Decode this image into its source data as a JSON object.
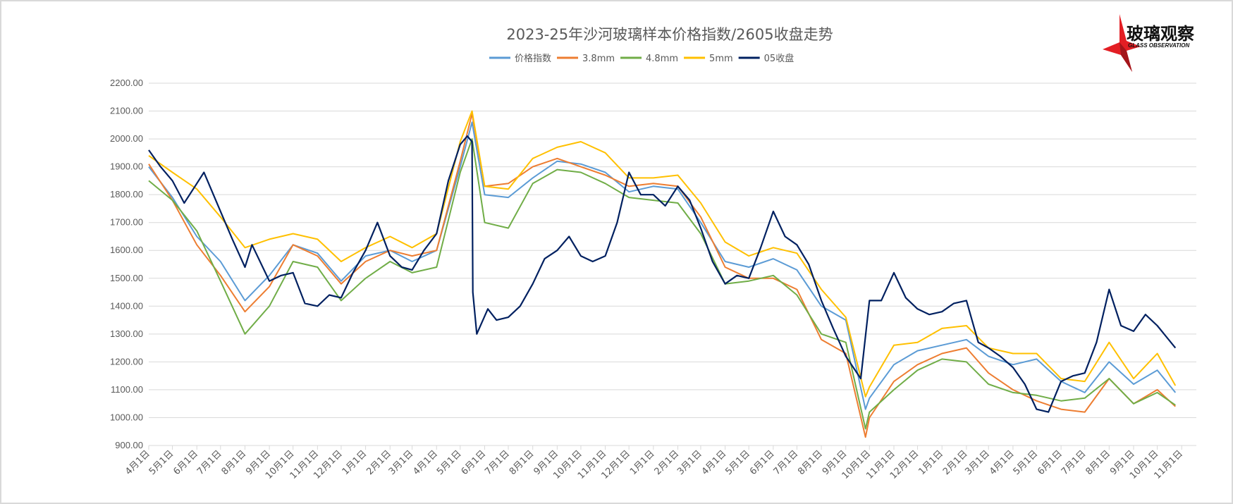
{
  "chart_data": {
    "type": "line",
    "title": "2023-25年沙河玻璃样本价格指数/2605收盘走势",
    "ylim": [
      900,
      2200
    ],
    "y_ticks": [
      "900.00",
      "1000.00",
      "1100.00",
      "1200.00",
      "1300.00",
      "1400.00",
      "1500.00",
      "1600.00",
      "1700.00",
      "1800.00",
      "1900.00",
      "2000.00",
      "2100.00",
      "2200.00"
    ],
    "x_tick_labels": [
      "4月1日",
      "5月1日",
      "6月1日",
      "7月1日",
      "8月1日",
      "9月1日",
      "10月1日",
      "11月1日",
      "12月1日",
      "1月1日",
      "2月1日",
      "3月1日",
      "4月1日",
      "5月1日",
      "6月1日",
      "7月1日",
      "8月1日",
      "9月1日",
      "10月1日",
      "11月1日",
      "12月1日",
      "1月1日",
      "2月1日",
      "3月1日",
      "4月1日",
      "5月1日",
      "6月1日",
      "7月1日",
      "8月1日",
      "9月1日",
      "10月1日",
      "11月1日",
      "12月1日",
      "1月1日",
      "2月1日",
      "3月1日",
      "4月1日",
      "5月1日",
      "6月1日",
      "7月1日",
      "8月1日",
      "9月1日",
      "10月1日",
      "11月1日"
    ],
    "x_axis_start": "2022-04-01",
    "grid": true,
    "legend_position": "top",
    "x": [
      "2022-04-01",
      "2022-05-01",
      "2022-06-01",
      "2022-07-01",
      "2022-08-01",
      "2022-09-01",
      "2022-10-01",
      "2022-11-01",
      "2022-12-01",
      "2023-01-01",
      "2023-02-01",
      "2023-03-01",
      "2023-04-01",
      "2023-05-01",
      "2023-05-16",
      "2023-06-01",
      "2023-07-01",
      "2023-08-01",
      "2023-09-01",
      "2023-10-01",
      "2023-11-01",
      "2023-12-01",
      "2024-01-01",
      "2024-02-01",
      "2024-03-01",
      "2024-04-01",
      "2024-05-01",
      "2024-06-01",
      "2024-07-01",
      "2024-08-01",
      "2024-09-01",
      "2024-09-26",
      "2024-10-01",
      "2024-11-01",
      "2024-12-01",
      "2025-01-01",
      "2025-02-01",
      "2025-03-01",
      "2025-04-01",
      "2025-05-01",
      "2025-06-01",
      "2025-07-01",
      "2025-08-01",
      "2025-09-01",
      "2025-10-01",
      "2025-10-24"
    ],
    "series": [
      {
        "name": "价格指数",
        "color": "#5b9bd5",
        "values": [
          1900,
          1790,
          1650,
          1560,
          1420,
          1510,
          1620,
          1590,
          1490,
          1580,
          1600,
          1560,
          1600,
          1900,
          2060,
          1800,
          1790,
          1860,
          1920,
          1910,
          1880,
          1810,
          1830,
          1820,
          1700,
          1560,
          1540,
          1570,
          1530,
          1400,
          1350,
          1030,
          1070,
          1190,
          1240,
          1260,
          1280,
          1220,
          1190,
          1210,
          1130,
          1090,
          1200,
          1120,
          1170,
          1090
        ]
      },
      {
        "name": "3.8mm",
        "color": "#ed7d31",
        "values": [
          1910,
          1780,
          1620,
          1510,
          1380,
          1470,
          1620,
          1580,
          1480,
          1560,
          1600,
          1580,
          1600,
          1920,
          2090,
          1830,
          1840,
          1900,
          1930,
          1900,
          1870,
          1830,
          1840,
          1830,
          1720,
          1540,
          1500,
          1500,
          1460,
          1280,
          1230,
          930,
          1000,
          1130,
          1190,
          1230,
          1250,
          1160,
          1100,
          1060,
          1030,
          1020,
          1140,
          1050,
          1100,
          1040
        ]
      },
      {
        "name": "4.8mm",
        "color": "#70ad47",
        "values": [
          1850,
          1780,
          1670,
          1490,
          1300,
          1400,
          1560,
          1540,
          1420,
          1500,
          1560,
          1520,
          1540,
          1880,
          2000,
          1700,
          1680,
          1840,
          1890,
          1880,
          1840,
          1790,
          1780,
          1770,
          1660,
          1480,
          1490,
          1510,
          1440,
          1300,
          1270,
          960,
          1020,
          1100,
          1170,
          1210,
          1200,
          1120,
          1090,
          1080,
          1060,
          1070,
          1140,
          1050,
          1090,
          1045
        ]
      },
      {
        "name": "5mm",
        "color": "#ffc000",
        "values": [
          1940,
          1880,
          1820,
          1720,
          1610,
          1640,
          1660,
          1640,
          1560,
          1610,
          1650,
          1610,
          1660,
          1990,
          2100,
          1830,
          1820,
          1930,
          1970,
          1990,
          1950,
          1860,
          1860,
          1870,
          1770,
          1630,
          1580,
          1610,
          1590,
          1460,
          1360,
          1075,
          1110,
          1260,
          1270,
          1320,
          1330,
          1250,
          1230,
          1230,
          1140,
          1130,
          1270,
          1140,
          1230,
          1115
        ]
      },
      {
        "name": "05收盘",
        "color": "#002060",
        "points": [
          [
            "2022-04-01",
            1960
          ],
          [
            "2022-04-16",
            1900
          ],
          [
            "2022-05-01",
            1850
          ],
          [
            "2022-05-16",
            1770
          ],
          [
            "2022-06-01",
            1840
          ],
          [
            "2022-06-10",
            1880
          ],
          [
            "2022-07-01",
            1740
          ],
          [
            "2022-07-16",
            1640
          ],
          [
            "2022-08-01",
            1540
          ],
          [
            "2022-08-10",
            1620
          ],
          [
            "2022-09-01",
            1490
          ],
          [
            "2022-09-16",
            1510
          ],
          [
            "2022-10-01",
            1520
          ],
          [
            "2022-10-16",
            1410
          ],
          [
            "2022-11-01",
            1400
          ],
          [
            "2022-11-16",
            1440
          ],
          [
            "2022-12-01",
            1430
          ],
          [
            "2022-12-16",
            1520
          ],
          [
            "2023-01-01",
            1600
          ],
          [
            "2023-01-16",
            1700
          ],
          [
            "2023-02-01",
            1580
          ],
          [
            "2023-02-16",
            1540
          ],
          [
            "2023-03-01",
            1530
          ],
          [
            "2023-03-16",
            1600
          ],
          [
            "2023-04-01",
            1660
          ],
          [
            "2023-04-16",
            1850
          ],
          [
            "2023-05-01",
            1980
          ],
          [
            "2023-05-10",
            2010
          ],
          [
            "2023-05-16",
            1990
          ],
          [
            "2023-05-17",
            1450
          ],
          [
            "2023-05-22",
            1300
          ],
          [
            "2023-06-05",
            1390
          ],
          [
            "2023-06-16",
            1350
          ],
          [
            "2023-07-01",
            1360
          ],
          [
            "2023-07-16",
            1400
          ],
          [
            "2023-08-01",
            1480
          ],
          [
            "2023-08-16",
            1570
          ],
          [
            "2023-09-01",
            1600
          ],
          [
            "2023-09-16",
            1650
          ],
          [
            "2023-10-01",
            1580
          ],
          [
            "2023-10-16",
            1560
          ],
          [
            "2023-11-01",
            1580
          ],
          [
            "2023-11-16",
            1700
          ],
          [
            "2023-12-01",
            1880
          ],
          [
            "2023-12-16",
            1800
          ],
          [
            "2024-01-01",
            1800
          ],
          [
            "2024-01-16",
            1760
          ],
          [
            "2024-02-01",
            1830
          ],
          [
            "2024-02-16",
            1780
          ],
          [
            "2024-03-01",
            1680
          ],
          [
            "2024-03-16",
            1560
          ],
          [
            "2024-04-01",
            1480
          ],
          [
            "2024-04-16",
            1510
          ],
          [
            "2024-05-01",
            1500
          ],
          [
            "2024-05-16",
            1610
          ],
          [
            "2024-06-01",
            1740
          ],
          [
            "2024-06-16",
            1650
          ],
          [
            "2024-07-01",
            1620
          ],
          [
            "2024-07-16",
            1550
          ],
          [
            "2024-08-01",
            1420
          ],
          [
            "2024-08-16",
            1320
          ],
          [
            "2024-09-01",
            1220
          ],
          [
            "2024-09-20",
            1140
          ],
          [
            "2024-10-01",
            1420
          ],
          [
            "2024-10-16",
            1420
          ],
          [
            "2024-11-01",
            1520
          ],
          [
            "2024-11-16",
            1430
          ],
          [
            "2024-12-01",
            1390
          ],
          [
            "2024-12-16",
            1370
          ],
          [
            "2025-01-01",
            1380
          ],
          [
            "2025-01-16",
            1410
          ],
          [
            "2025-02-01",
            1420
          ],
          [
            "2025-02-16",
            1270
          ],
          [
            "2025-03-01",
            1250
          ],
          [
            "2025-03-16",
            1220
          ],
          [
            "2025-04-01",
            1180
          ],
          [
            "2025-04-16",
            1120
          ],
          [
            "2025-05-01",
            1030
          ],
          [
            "2025-05-16",
            1020
          ],
          [
            "2025-06-01",
            1130
          ],
          [
            "2025-06-16",
            1150
          ],
          [
            "2025-07-01",
            1160
          ],
          [
            "2025-07-16",
            1270
          ],
          [
            "2025-08-01",
            1460
          ],
          [
            "2025-08-16",
            1330
          ],
          [
            "2025-09-01",
            1310
          ],
          [
            "2025-09-16",
            1370
          ],
          [
            "2025-10-01",
            1330
          ],
          [
            "2025-10-24",
            1250
          ]
        ]
      }
    ]
  },
  "logo": {
    "cn": "玻璃观察",
    "en": "GLASS OBSERVATION",
    "color": "#e31e24"
  }
}
